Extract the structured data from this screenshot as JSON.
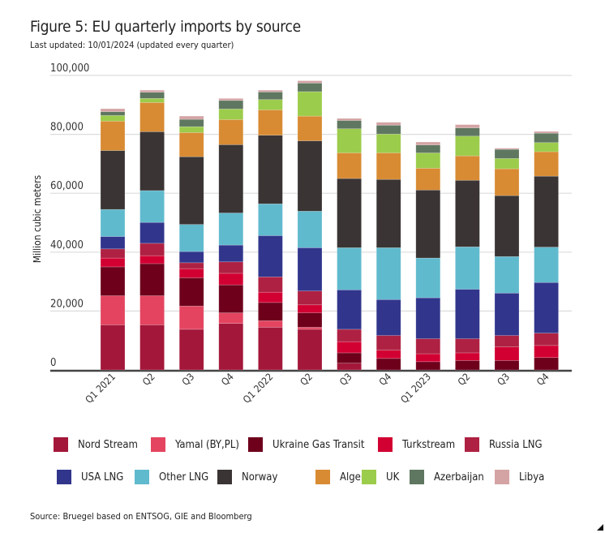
{
  "chart_data": {
    "type": "bar",
    "stacked": true,
    "title": "Figure 5: EU quarterly imports by source",
    "subtitle": "Last updated: 10/01/2024 (updated every quarter)",
    "xlabel": "",
    "ylabel": "Million cubic meters",
    "ylim": [
      0,
      100000
    ],
    "yticks": [
      "0",
      "20,000",
      "40,000",
      "60,000",
      "80,000",
      "100,000"
    ],
    "ytick_values": [
      0,
      20000,
      40000,
      60000,
      80000,
      100000
    ],
    "grid": true,
    "legend_position": "bottom",
    "categories": [
      "Q1 2021",
      "Q2",
      "Q3",
      "Q4",
      "Q1 2022",
      "Q2",
      "Q3",
      "Q4",
      "Q1 2023",
      "Q2",
      "Q3",
      "Q4"
    ],
    "series": [
      {
        "name": "Nord Stream",
        "color": "#a3173a",
        "values": [
          15300,
          15300,
          13800,
          15800,
          14500,
          13800,
          2300,
          0,
          0,
          0,
          0,
          0
        ]
      },
      {
        "name": "Yamal (BY,PL)",
        "color": "#e4445f",
        "values": [
          9900,
          9900,
          7900,
          3600,
          2200,
          700,
          0,
          0,
          0,
          0,
          0,
          0
        ]
      },
      {
        "name": "Ukraine Gas Transit",
        "color": "#6e001c",
        "values": [
          9800,
          10900,
          9600,
          9500,
          6200,
          4900,
          3500,
          3900,
          2800,
          3200,
          3200,
          4200
        ]
      },
      {
        "name": "Turkstream",
        "color": "#d20032",
        "values": [
          3000,
          2700,
          3100,
          3900,
          3500,
          2700,
          3800,
          2800,
          2700,
          2600,
          4600,
          4100
        ]
      },
      {
        "name": "Russia LNG",
        "color": "#ae2142",
        "values": [
          3100,
          4200,
          2000,
          3900,
          5200,
          4700,
          4200,
          5000,
          5100,
          4800,
          3900,
          4200
        ]
      },
      {
        "name": "USA LNG",
        "color": "#31368c",
        "values": [
          4200,
          7100,
          3800,
          5700,
          14000,
          14700,
          13400,
          12200,
          13900,
          16800,
          14400,
          17200
        ]
      },
      {
        "name": "Other LNG",
        "color": "#60bacd",
        "values": [
          9200,
          10800,
          9200,
          10900,
          10800,
          12400,
          14300,
          17600,
          13500,
          14400,
          12400,
          12000
        ]
      },
      {
        "name": "Norway",
        "color": "#3a3434",
        "values": [
          20000,
          20000,
          23000,
          23200,
          23300,
          23900,
          23500,
          23200,
          23100,
          22600,
          20700,
          24100
        ]
      },
      {
        "name": "Algeria",
        "color": "#d88b33",
        "values": [
          10000,
          9900,
          8200,
          8500,
          8600,
          8400,
          8700,
          9000,
          7400,
          8300,
          9100,
          8300
        ]
      },
      {
        "name": "UK",
        "color": "#9ccc4b",
        "values": [
          1900,
          1400,
          2000,
          3600,
          3500,
          8300,
          8200,
          6400,
          5200,
          6700,
          3500,
          3100
        ]
      },
      {
        "name": "Azerbaijan",
        "color": "#5f7760",
        "values": [
          1300,
          2100,
          2500,
          2900,
          2600,
          2900,
          2800,
          3000,
          2700,
          2800,
          3100,
          3200
        ]
      },
      {
        "name": "Libya",
        "color": "#d4a3a4",
        "values": [
          1000,
          700,
          1100,
          700,
          600,
          800,
          700,
          1000,
          1000,
          1100,
          400,
          600
        ]
      }
    ]
  },
  "source": "Source: Bruegel based on ENTSOG, GIE and Bloomberg"
}
